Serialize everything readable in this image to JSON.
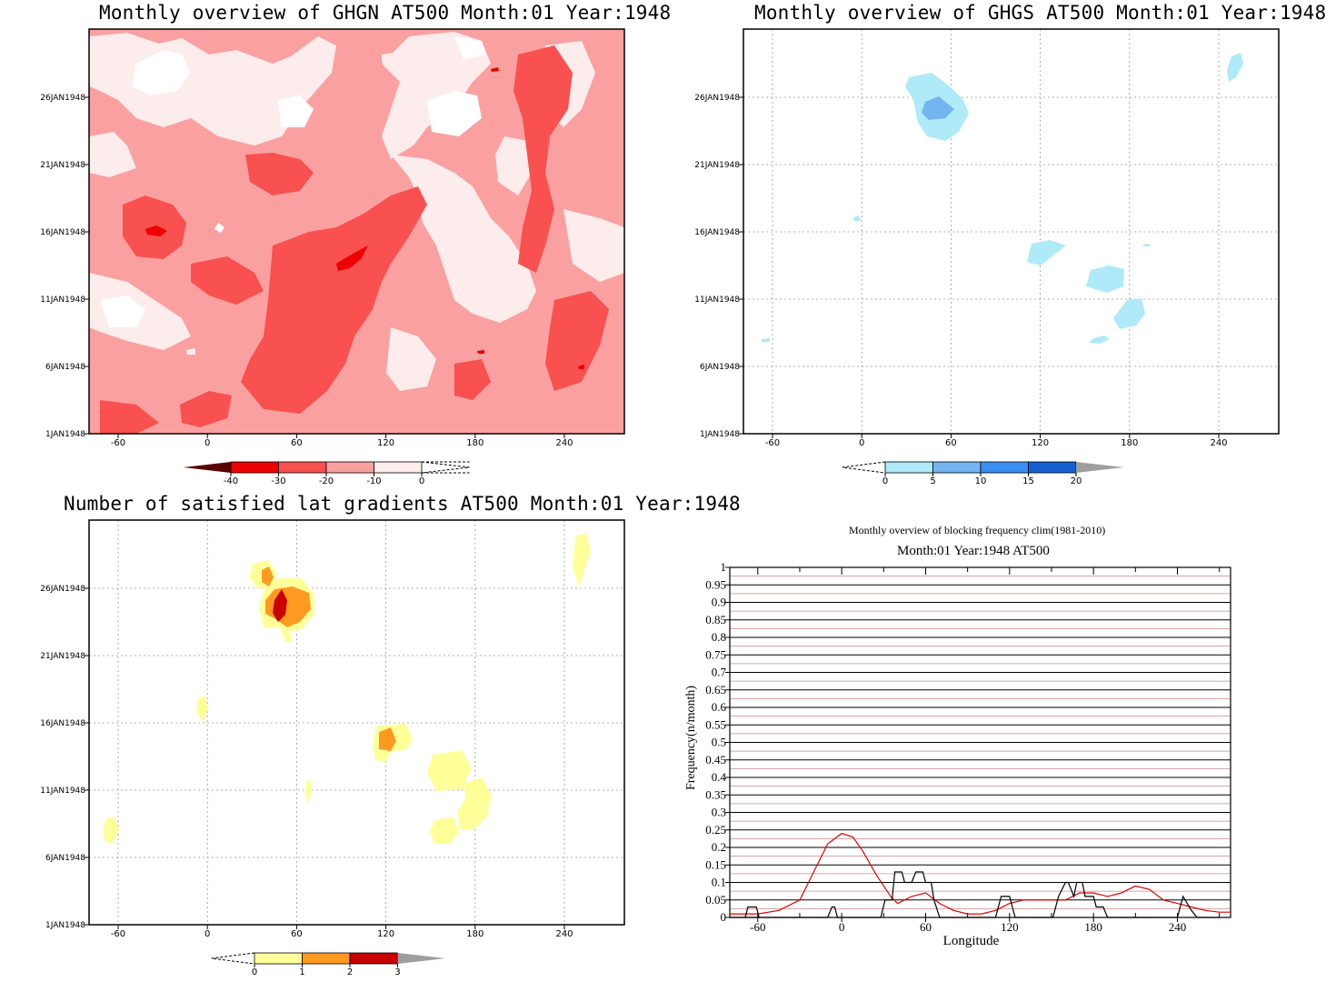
{
  "titles": {
    "ghgn": "Monthly overview of GHGN AT500 Month:01 Year:1948",
    "ghgs": "Monthly overview of GHGS AT500 Month:01 Year:1948",
    "lat": "Number of satisfied lat gradients AT500 Month:01 Year:1948",
    "freq_title": "Monthly overview of blocking frequency clim(1981-2010)",
    "freq_subtitle": "Month:01 Year:1948  AT500"
  },
  "time_ticks": [
    "1JAN1948",
    "6JAN1948",
    "11JAN1948",
    "16JAN1948",
    "21JAN1948",
    "26JAN1948"
  ],
  "lon_ticks": [
    "-60",
    "0",
    "60",
    "120",
    "180",
    "240"
  ],
  "colorbars": {
    "ghgn": {
      "labels": [
        "-40",
        "-30",
        "-20",
        "-10",
        "0"
      ],
      "colors": [
        "#5a0000",
        "#ee0000",
        "#f95050",
        "#fba0a0",
        "#fdecec"
      ]
    },
    "ghgs": {
      "labels": [
        "0",
        "5",
        "10",
        "15",
        "20"
      ],
      "colors": [
        "#aeeaf7",
        "#72b5f0",
        "#3a8ef0",
        "#1560d0",
        "#9e9e9e"
      ]
    },
    "lat": {
      "labels": [
        "0",
        "1",
        "2",
        "3"
      ],
      "colors": [
        "#ffff9a",
        "#ff9a20",
        "#c80000",
        "#9e9e9e"
      ]
    }
  },
  "chart_data": [
    {
      "type": "heatmap",
      "title": "Monthly overview of GHGN AT500 Month:01 Year:1948",
      "x_ticks": [
        -60,
        0,
        60,
        120,
        180,
        240
      ],
      "y_ticks": [
        "1JAN1948",
        "6JAN1948",
        "11JAN1948",
        "16JAN1948",
        "21JAN1948",
        "26JAN1948"
      ],
      "contour_levels": [
        -40,
        -30,
        -20,
        -10,
        0
      ]
    },
    {
      "type": "heatmap",
      "title": "Monthly overview of GHGS AT500 Month:01 Year:1948",
      "x_ticks": [
        -60,
        0,
        60,
        120,
        180,
        240
      ],
      "y_ticks": [
        "1JAN1948",
        "6JAN1948",
        "11JAN1948",
        "16JAN1948",
        "21JAN1948",
        "26JAN1948"
      ],
      "contour_levels": [
        0,
        5,
        10,
        15,
        20
      ]
    },
    {
      "type": "heatmap",
      "title": "Number of satisfied lat gradients AT500 Month:01 Year:1948",
      "x_ticks": [
        -60,
        0,
        60,
        120,
        180,
        240
      ],
      "y_ticks": [
        "1JAN1948",
        "6JAN1948",
        "11JAN1948",
        "16JAN1948",
        "21JAN1948",
        "26JAN1948"
      ],
      "contour_levels": [
        0,
        1,
        2,
        3
      ]
    },
    {
      "type": "line",
      "title": "Monthly overview of blocking frequency clim(1981-2010)",
      "subtitle": "Month:01 Year:1948  AT500",
      "xlabel": "Longitude",
      "ylabel": "Frequency(n/month)",
      "xlim": [
        -80,
        278
      ],
      "ylim": [
        0,
        1
      ],
      "x_ticks": [
        -60,
        0,
        60,
        120,
        180,
        240
      ],
      "y_ticks": [
        0,
        0.05,
        0.1,
        0.15,
        0.2,
        0.25,
        0.3,
        0.35,
        0.4,
        0.45,
        0.5,
        0.55,
        0.6,
        0.65,
        0.7,
        0.75,
        0.8,
        0.85,
        0.9,
        0.95,
        1
      ],
      "series": [
        {
          "color": "#e00000",
          "x": [
            -80,
            -60,
            -45,
            -30,
            -20,
            -10,
            0,
            8,
            15,
            25,
            35,
            40,
            50,
            60,
            70,
            80,
            90,
            100,
            110,
            120,
            130,
            140,
            150,
            160,
            170,
            180,
            190,
            200,
            210,
            220,
            230,
            240,
            250,
            260,
            270,
            278
          ],
          "y": [
            0.01,
            0.01,
            0.02,
            0.05,
            0.13,
            0.21,
            0.24,
            0.23,
            0.19,
            0.12,
            0.06,
            0.04,
            0.06,
            0.07,
            0.04,
            0.02,
            0.01,
            0.01,
            0.02,
            0.04,
            0.05,
            0.05,
            0.05,
            0.05,
            0.07,
            0.07,
            0.06,
            0.07,
            0.09,
            0.08,
            0.05,
            0.04,
            0.03,
            0.02,
            0.015,
            0.015
          ]
        },
        {
          "color": "#000000",
          "x": [
            -80,
            -69,
            -67,
            -61,
            -59,
            -80,
            -10,
            -7,
            -5,
            -3,
            28,
            31,
            36,
            38,
            43,
            45,
            50,
            53,
            58,
            60,
            64,
            66,
            70,
            110,
            114,
            120,
            124,
            136,
            151,
            155,
            160,
            162,
            166,
            168,
            172,
            174,
            180,
            182,
            187,
            190,
            240,
            244,
            250,
            254,
            270
          ],
          "y": [
            0,
            0,
            0.03,
            0.03,
            0,
            0,
            0,
            0.03,
            0.03,
            0,
            0,
            0.05,
            0.05,
            0.13,
            0.13,
            0.1,
            0.1,
            0.13,
            0.13,
            0.1,
            0.1,
            0.05,
            0,
            0,
            0.06,
            0.06,
            0,
            0,
            0,
            0.06,
            0.1,
            0.1,
            0.06,
            0.1,
            0.1,
            0.06,
            0.06,
            0.03,
            0.03,
            0,
            0,
            0.06,
            0.02,
            0,
            0
          ]
        }
      ]
    }
  ]
}
